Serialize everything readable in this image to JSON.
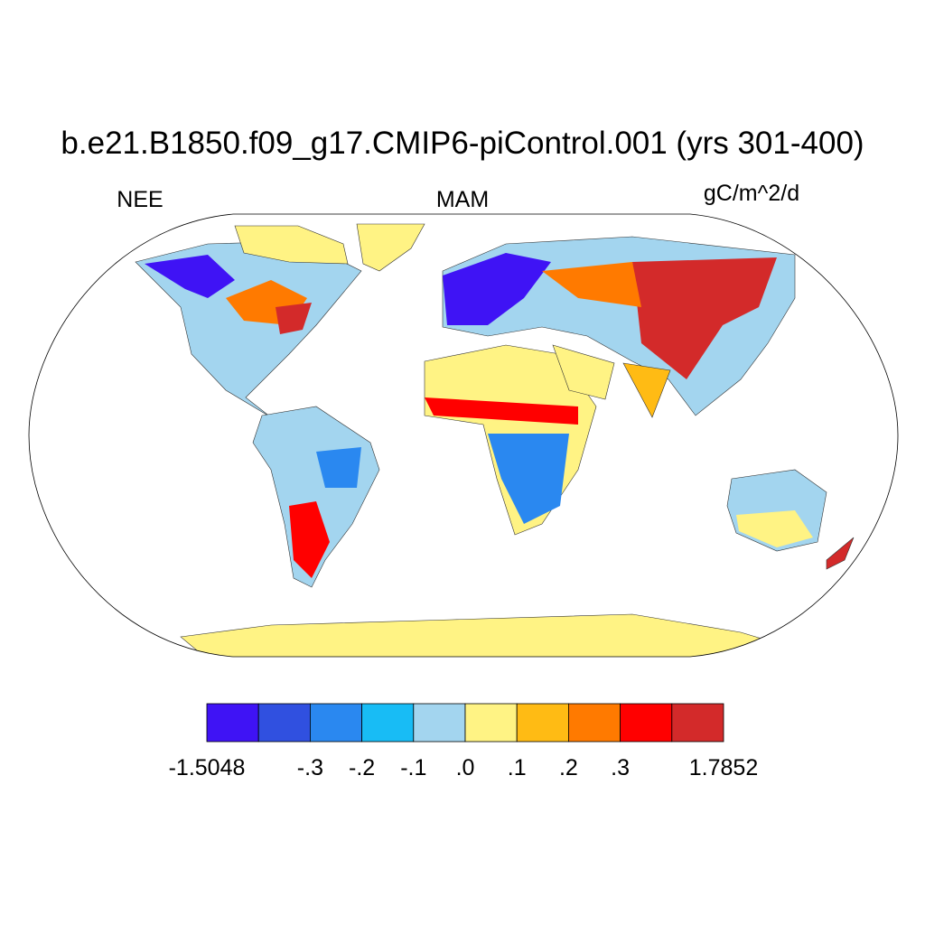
{
  "header": {
    "title": "b.e21.B1850.f09_g17.CMIP6-piControl.001 (yrs 301-400)",
    "left": "NEE",
    "center": "MAM",
    "right": "gC/m^2/d"
  },
  "colorbar": {
    "colors": [
      "#3f13f5",
      "#3050e0",
      "#2a88f0",
      "#18bcf5",
      "#a3d5ef",
      "#fff384",
      "#ffbb14",
      "#ff7a00",
      "#ff0000",
      "#d32a2a"
    ],
    "levels": [
      -1.5048,
      null,
      {
        "value": -0.3,
        "label": "-.3"
      },
      {
        "value": -0.2,
        "label": "-.2"
      },
      {
        "value": -0.1,
        "label": "-.1"
      },
      {
        "value": 0,
        "label": ".0"
      },
      {
        "value": 0.1,
        "label": ".1"
      },
      {
        "value": 0.2,
        "label": ".2"
      },
      {
        "value": 0.3,
        "label": ".3"
      },
      null,
      1.7852
    ]
  }
}
